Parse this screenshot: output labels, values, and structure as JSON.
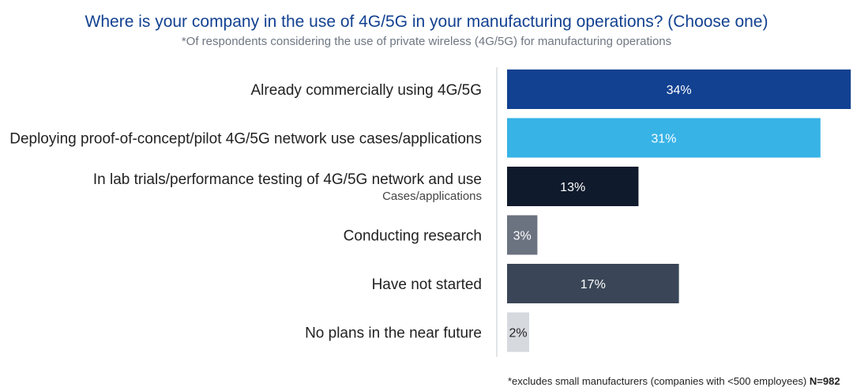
{
  "chart_data": {
    "type": "bar",
    "orientation": "horizontal",
    "title": "Where is your company in the use of 4G/5G in your manufacturing operations? (Choose one)",
    "subtitle": "*Of respondents considering the use of private wireless (4G/5G) for manufacturing operations",
    "categories": [
      {
        "label": "Already commercially using 4G/5G",
        "sublabel": ""
      },
      {
        "label": "Deploying proof-of-concept/pilot 4G/5G network use cases/applications",
        "sublabel": ""
      },
      {
        "label": "In lab trials/performance testing of 4G/5G network and use",
        "sublabel": "Cases/applications"
      },
      {
        "label": "Conducting research",
        "sublabel": ""
      },
      {
        "label": "Have not started",
        "sublabel": ""
      },
      {
        "label": "No plans in the near future",
        "sublabel": ""
      }
    ],
    "values": [
      34,
      31,
      13,
      3,
      17,
      2
    ],
    "value_labels": [
      "34%",
      "31%",
      "13%",
      "3%",
      "17%",
      "2%"
    ],
    "bar_colors": [
      "#124191",
      "#37b3e6",
      "#0f1a2c",
      "#6b7280",
      "#3a4657",
      "#d6d9de"
    ],
    "label_colors": [
      "#ffffff",
      "#ffffff",
      "#ffffff",
      "#ffffff",
      "#ffffff",
      "#222222"
    ],
    "xlim": [
      0,
      35
    ],
    "grid": false,
    "legend": "none"
  },
  "footnote": {
    "text": "*excludes small manufacturers (companies with <500 employees) ",
    "n": "N=982"
  }
}
